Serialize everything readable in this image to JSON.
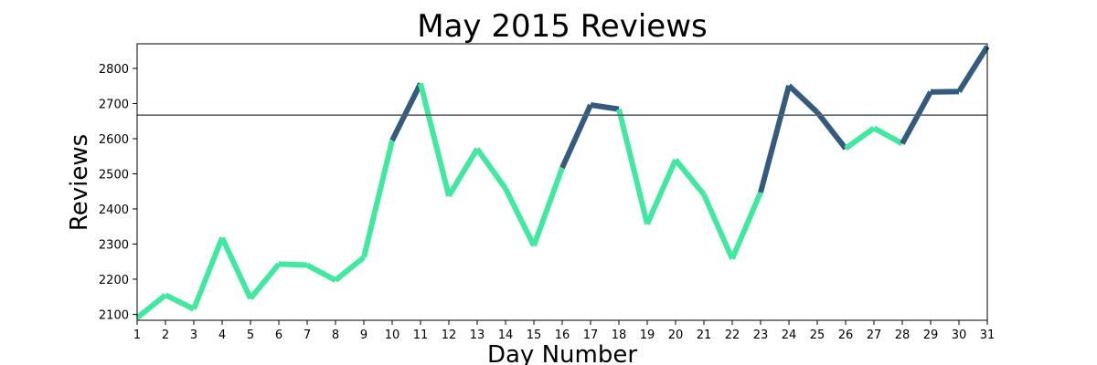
{
  "chart_data": {
    "type": "line",
    "title": "May 2015 Reviews",
    "xlabel": "Day Number",
    "ylabel": "Reviews",
    "x": [
      1,
      2,
      3,
      4,
      5,
      6,
      7,
      8,
      9,
      10,
      11,
      12,
      13,
      14,
      15,
      16,
      17,
      18,
      19,
      20,
      21,
      22,
      23,
      24,
      25,
      26,
      27,
      28,
      29,
      30,
      31
    ],
    "y": [
      2090,
      2155,
      2115,
      2318,
      2145,
      2243,
      2240,
      2197,
      2262,
      2595,
      2757,
      2437,
      2571,
      2458,
      2295,
      2517,
      2696,
      2684,
      2357,
      2540,
      2441,
      2258,
      2447,
      2751,
      2675,
      2572,
      2630,
      2586,
      2733,
      2734,
      2862
    ],
    "ylim": [
      2083,
      2870
    ],
    "xlim": [
      1,
      31
    ],
    "yticks": [
      2100,
      2200,
      2300,
      2400,
      2500,
      2600,
      2700,
      2800
    ],
    "xticks": [
      1,
      2,
      3,
      4,
      5,
      6,
      7,
      8,
      9,
      10,
      11,
      12,
      13,
      14,
      15,
      16,
      17,
      18,
      19,
      20,
      21,
      22,
      23,
      24,
      25,
      26,
      27,
      28,
      29,
      30,
      31
    ],
    "reference_line": {
      "y": 2667,
      "color": "#5a6270"
    },
    "colors": {
      "below_reference": "#40e8a0",
      "above_reference": "#345b7d"
    },
    "grid": false
  }
}
